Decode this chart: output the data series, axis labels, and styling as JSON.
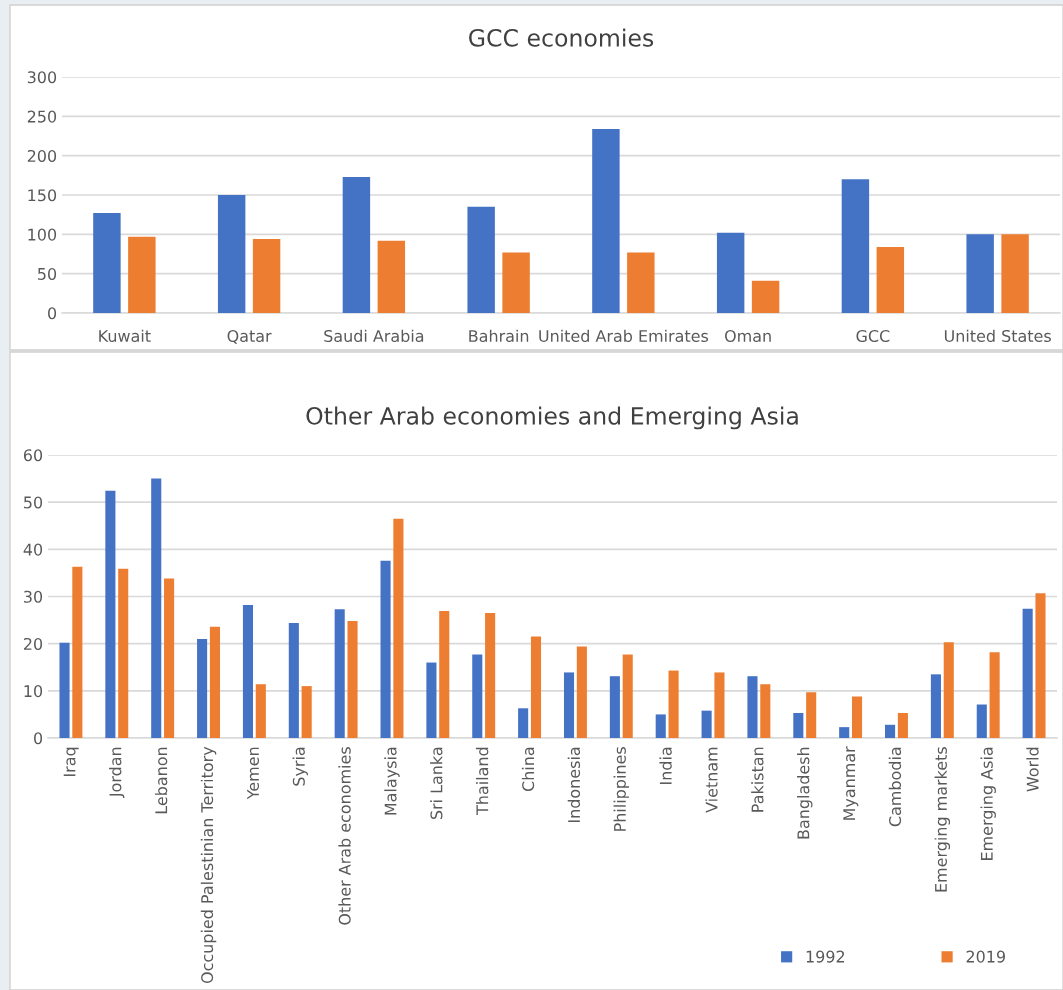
{
  "chart_data": [
    {
      "type": "bar",
      "title": "GCC economies",
      "categories": [
        "Kuwait",
        "Qatar",
        "Saudi Arabia",
        "Bahrain",
        "United Arab Emirates",
        "Oman",
        "GCC",
        "United States"
      ],
      "series": [
        {
          "color": "#4472c4",
          "values": [
            127,
            150,
            173,
            135,
            234,
            102,
            170,
            100
          ]
        },
        {
          "color": "#ed7d31",
          "values": [
            97,
            94,
            92,
            77,
            77,
            41,
            84,
            100
          ]
        }
      ],
      "ylim": [
        0,
        300
      ],
      "yticks": [
        0,
        50,
        100,
        150,
        200,
        250,
        300
      ],
      "grid": "y",
      "legend": false
    },
    {
      "type": "bar",
      "title": "Other Arab economies and Emerging Asia",
      "categories": [
        "Iraq",
        "Jordan",
        "Lebanon",
        "Occupied Palestinian Territory",
        "Yemen",
        "Syria",
        "Other Arab economies",
        "Malaysia",
        "Sri Lanka",
        "Thailand",
        "China",
        "Indonesia",
        "Philippines",
        "India",
        "Vietnam",
        "Pakistan",
        "Bangladesh",
        "Myanmar",
        "Cambodia",
        "Emerging markets",
        "Emerging Asia",
        "World"
      ],
      "series": [
        {
          "name": "1992",
          "color": "#4472c4",
          "values": [
            20.2,
            52.4,
            55,
            21,
            28.2,
            24.4,
            27.3,
            37.6,
            16,
            17.7,
            6.3,
            13.9,
            13.1,
            5,
            5.8,
            13.1,
            5.3,
            2.3,
            2.8,
            13.5,
            7.1,
            27.4
          ]
        },
        {
          "name": "2019",
          "color": "#ed7d31",
          "values": [
            36.3,
            35.9,
            33.8,
            23.6,
            11.4,
            11,
            24.8,
            46.5,
            26.9,
            26.5,
            21.5,
            19.4,
            17.7,
            14.3,
            13.9,
            11.4,
            9.7,
            8.8,
            5.3,
            20.3,
            18.2,
            30.7
          ]
        }
      ],
      "ylim": [
        0,
        60
      ],
      "yticks": [
        0,
        10,
        20,
        30,
        40,
        50,
        60
      ],
      "grid": "y",
      "legend": "bottom right"
    }
  ]
}
